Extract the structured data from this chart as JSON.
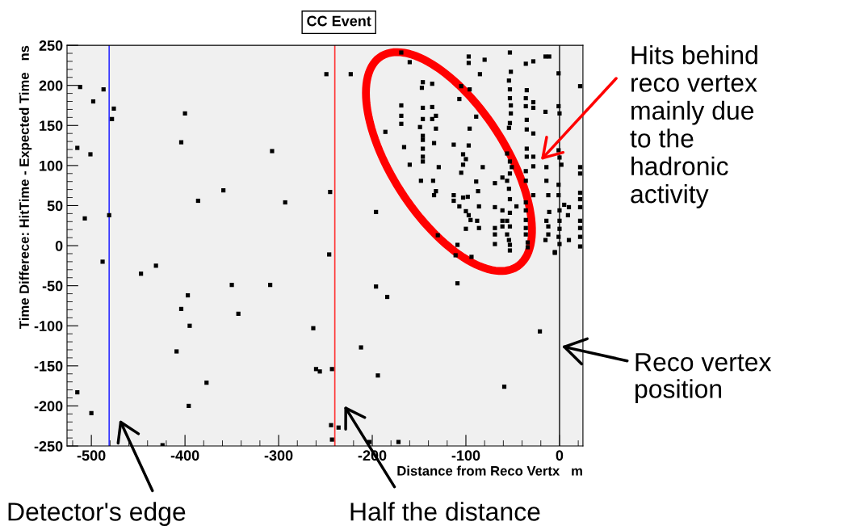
{
  "chart_data": {
    "type": "scatter",
    "title": "CC Event",
    "xlabel": "Distance from Reco Vertx   m",
    "ylabel": "Time Differece: HitTime - Expected Time   ns",
    "xlim": [
      -526,
      25
    ],
    "ylim": [
      -250,
      250
    ],
    "xticks": [
      -500,
      -400,
      -300,
      -200,
      -100,
      0
    ],
    "yticks": [
      -250,
      -200,
      -150,
      -100,
      -50,
      0,
      50,
      100,
      150,
      200,
      250
    ],
    "grid": false,
    "legend": false,
    "marker": "square",
    "ref_lines": [
      {
        "axis": "x",
        "value": -481,
        "color": "#3333ff"
      },
      {
        "axis": "x",
        "value": -240,
        "color": "#ff3333"
      },
      {
        "axis": "x",
        "value": 0,
        "color": "#333333"
      }
    ],
    "annotations": [
      "Hits behind\nreco vertex\nmainly due\nto the\nhadronic\nactivity",
      {
        "text": "Reco vertex\nposition",
        "x": 0,
        "y": -125
      },
      "Detector's edge",
      "Half the distance"
    ],
    "series": [
      {
        "color": "#000000",
        "x": [
          -512,
          -487,
          -498,
          -476,
          -478,
          -400,
          -515,
          -501,
          -404,
          -307,
          -507,
          -481,
          -386,
          -359,
          -293,
          -488,
          -447,
          -431,
          -350,
          -309,
          -397,
          -404,
          -343,
          -395,
          -409,
          -377,
          -515,
          -500,
          -396,
          -424,
          -246,
          -196,
          -184,
          -263,
          -212,
          -260,
          -256,
          -243,
          -194,
          -21,
          -59,
          -244,
          -236,
          -243,
          -203,
          -172,
          -109,
          -111,
          -94,
          -5,
          -249,
          -223,
          -245,
          -196,
          -169,
          -160,
          -97,
          -97,
          -80,
          -85,
          -53,
          -52,
          -36,
          -28,
          -15,
          -11,
          -1,
          22,
          -146,
          -147,
          -136,
          -146,
          -146,
          -149,
          -146,
          -146,
          -146,
          -146,
          -146,
          -169,
          -169,
          -169,
          -186,
          -166,
          -160,
          -136,
          -132,
          -136,
          -132,
          -134,
          -129,
          -148,
          -135,
          -132,
          -134,
          -105,
          -96,
          -107,
          -89,
          -96,
          -113,
          -97,
          -103,
          -100,
          -103,
          -82,
          -105,
          -89,
          -87,
          -113,
          -113,
          -103,
          -98,
          -107,
          -86,
          -100,
          -97,
          -95,
          -88,
          -86,
          -100,
          -130,
          -109,
          -54,
          -53,
          -53,
          -52,
          -52,
          -53,
          -54,
          -56,
          -53,
          -51,
          -53,
          -56,
          -54,
          -53,
          -53,
          -56,
          -53,
          -56,
          -54,
          -53,
          -53,
          -61,
          -69,
          -69,
          -69,
          -61,
          -69,
          -61,
          -69,
          -61,
          -35,
          -36,
          -36,
          -28,
          -28,
          -35,
          -35,
          -28,
          -35,
          -35,
          -28,
          -28,
          -36,
          -36,
          -36,
          -36,
          -36,
          -36,
          -36,
          -34,
          -34,
          -28,
          -46,
          -15,
          -14,
          -14,
          -12,
          -11,
          -14,
          -12,
          -12,
          -15,
          -5,
          10,
          -1,
          0,
          -1,
          0,
          2,
          -1,
          -1,
          0,
          0,
          0,
          -1,
          0,
          5,
          10,
          9,
          22,
          22,
          22,
          22,
          22,
          22,
          22,
          22,
          22
        ],
        "values": [
          198,
          195,
          180,
          171,
          158,
          165,
          122,
          114,
          129,
          118,
          34,
          38,
          56,
          69,
          54,
          -20,
          -35,
          -25,
          -49,
          -49,
          -62,
          -79,
          -85,
          -100,
          -132,
          -171,
          -183,
          -209,
          -200,
          -249,
          -11,
          -51,
          -64,
          -103,
          -127,
          -154,
          -157,
          -154,
          -162,
          -107,
          -176,
          -224,
          -227,
          -242,
          -245,
          -245,
          -47,
          -12,
          -14,
          -9,
          214,
          214,
          67,
          42,
          241,
          229,
          236,
          228,
          232,
          214,
          241,
          217,
          227,
          230,
          236,
          236,
          215,
          199,
          204,
          197,
          202,
          172,
          158,
          148,
          137,
          132,
          121,
          111,
          105,
          175,
          162,
          152,
          142,
          123,
          101,
          173,
          162,
          158,
          146,
          128,
          98,
          81,
          81,
          68,
          63,
          199,
          195,
          183,
          161,
          146,
          126,
          125,
          114,
          108,
          101,
          98,
          91,
          80,
          68,
          63,
          56,
          60,
          61,
          49,
          49,
          43,
          38,
          32,
          31,
          22,
          21,
          13,
          1,
          206,
          195,
          184,
          175,
          165,
          153,
          147,
          115,
          105,
          98,
          90,
          81,
          71,
          58,
          41,
          31,
          24,
          14,
          7,
          1,
          -6,
          24,
          22,
          14,
          2,
          31,
          48,
          44,
          78,
          85,
          194,
          184,
          174,
          179,
          172,
          157,
          145,
          140,
          121,
          111,
          111,
          99,
          93,
          81,
          54,
          44,
          32,
          22,
          14,
          4,
          -2,
          63,
          49,
          167,
          98,
          81,
          63,
          42,
          31,
          24,
          14,
          7,
          -8,
          7,
          174,
          165,
          119,
          110,
          101,
          76,
          63,
          44,
          31,
          21,
          11,
          2,
          51,
          48,
          38,
          98,
          90,
          66,
          58,
          48,
          31,
          22,
          11,
          -1
        ]
      }
    ]
  }
}
